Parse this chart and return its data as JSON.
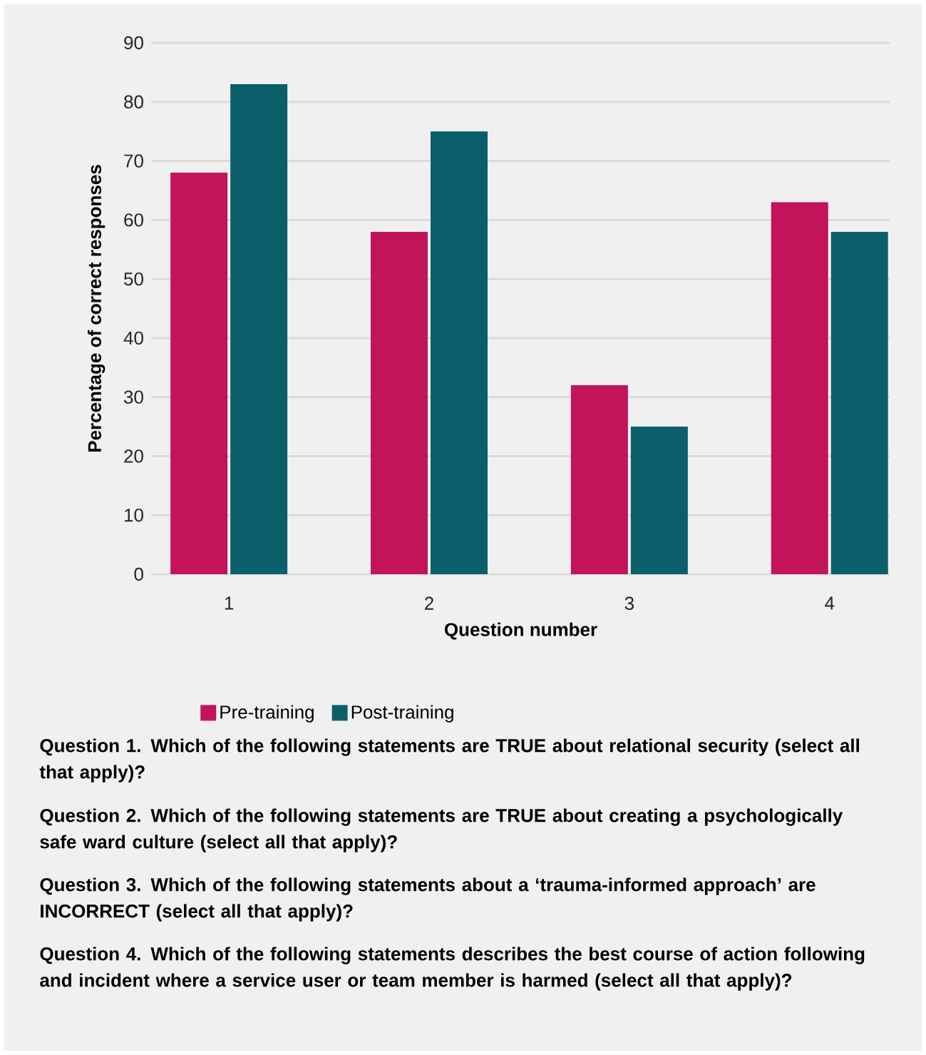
{
  "chart_data": {
    "type": "bar",
    "xlabel": "Question number",
    "ylabel": "Percentage of correct responses",
    "categories": [
      "1",
      "2",
      "3",
      "4"
    ],
    "series": [
      {
        "name": "Pre-training",
        "color": "#c3135a",
        "values": [
          68,
          58,
          32,
          63
        ]
      },
      {
        "name": "Post-training",
        "color": "#0b5f6a",
        "values": [
          83,
          75,
          25,
          58
        ]
      }
    ],
    "ylim": [
      0,
      90
    ],
    "yticks": [
      0,
      10,
      20,
      30,
      40,
      50,
      60,
      70,
      80,
      90
    ],
    "grid": "y",
    "legend": "bottom",
    "annotations": [
      "Question 1. Which of the following statements are TRUE about relational security (select all that apply)?",
      "Question 2. Which of the following statements are TRUE about creating a psychologically safe ward culture (select all that apply)?",
      "Question 3. Which of the following statements about a ‘trauma-informed approach’ are INCORRECT (select all that apply)?",
      "Question 4. Which of the following statements describes the best course of action following and incident where a service user or team member is harmed (select all that apply)?"
    ]
  }
}
